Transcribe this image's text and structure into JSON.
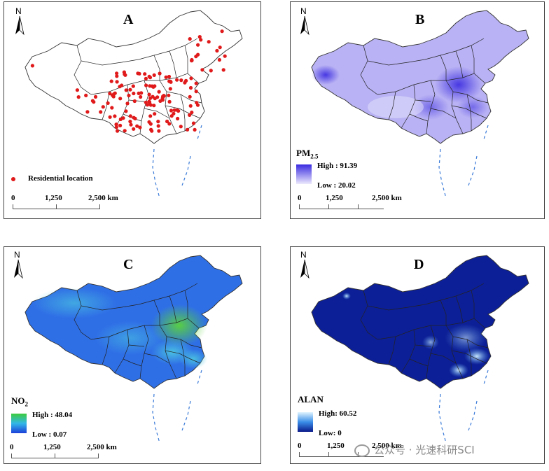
{
  "panels": {
    "a": {
      "letter": "A",
      "legend": "Residential location",
      "scale": [
        "0",
        "1,250",
        "2,500 km"
      ],
      "colors": {
        "dot": "#e0191a"
      }
    },
    "b": {
      "letter": "B",
      "title_main": "PM",
      "title_sub": "2.5",
      "high": "High : 91.39",
      "low": "Low : 20.02",
      "scale": [
        "0",
        "1,250",
        "2,500 km"
      ],
      "colors": {
        "high": "#3a2be0",
        "low": "#e9e6fb"
      }
    },
    "c": {
      "letter": "C",
      "title_main": "NO",
      "title_sub": "2",
      "high": "High : 48.04",
      "low": "Low : 0.07",
      "scale": [
        "0",
        "1,250",
        "2,500 km"
      ],
      "colors": {
        "high": "#3ccc3c",
        "mid": "#33b8e8",
        "low": "#1b3fd8"
      }
    },
    "d": {
      "letter": "D",
      "title_main": "ALAN",
      "high": "High: 60.52",
      "low": "Low: 0",
      "scale": [
        "0",
        "1,250",
        "2,500 km"
      ],
      "colors": {
        "high": "#d8f0ff",
        "low": "#0a1a8a"
      }
    }
  },
  "north_label": "N",
  "watermark": "公众号 · 光速科研SCI"
}
